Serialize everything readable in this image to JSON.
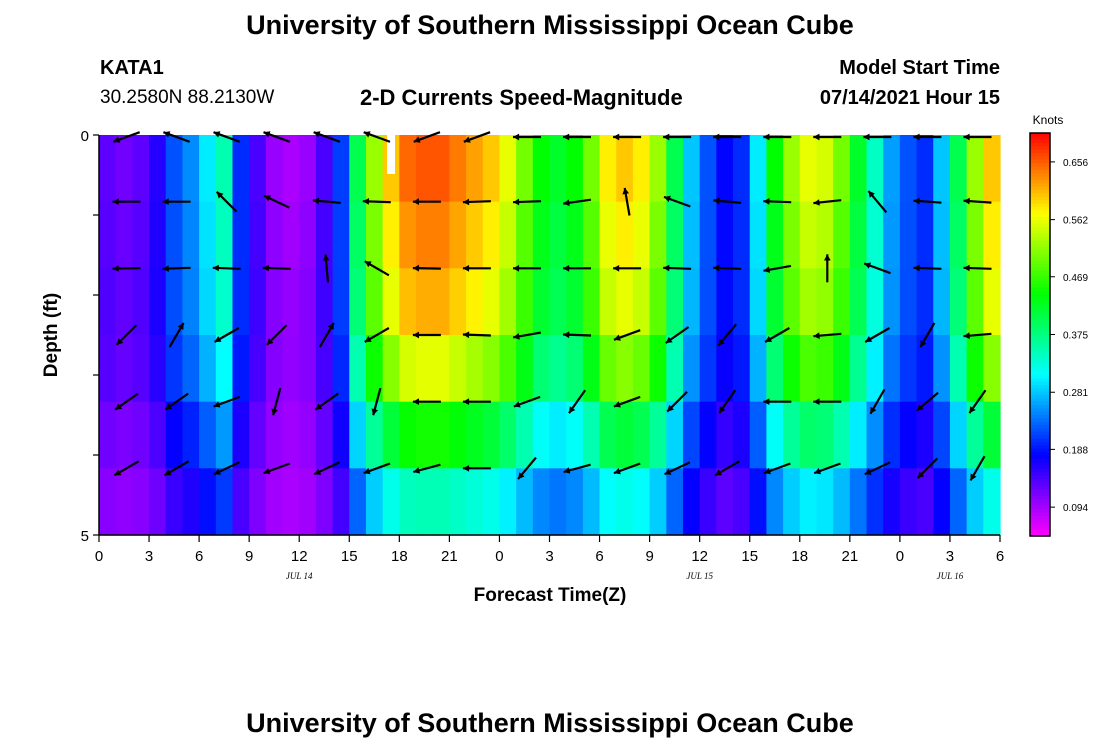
{
  "header": {
    "title_top": "University of Southern Mississippi Ocean Cube",
    "title_bottom": "University of Southern Mississippi Ocean Cube",
    "station": "KATA1",
    "coords": "30.2580N  88.2130W",
    "plot_title": "2-D Currents Speed-Magnitude",
    "model_start_label": "Model Start Time",
    "model_start_value": "07/14/2021 Hour 15"
  },
  "chart_data": {
    "type": "heatmap",
    "xlabel": "Forecast Time(Z)",
    "ylabel": "Depth (ft)",
    "x_ticks": [
      "0",
      "3",
      "6",
      "9",
      "12",
      "15",
      "18",
      "21",
      "0",
      "3",
      "6",
      "9",
      "12",
      "15",
      "18",
      "21",
      "0",
      "3",
      "6"
    ],
    "date_labels": [
      {
        "text": "JUL 14",
        "at_tick": 4
      },
      {
        "text": "JUL 15",
        "at_tick": 12
      },
      {
        "text": "JUL 16",
        "at_tick": 17
      }
    ],
    "y_ticks": [
      "0",
      "",
      "",
      "",
      "",
      "5"
    ],
    "ylim": [
      0,
      5
    ],
    "hours": 54,
    "colorbar": {
      "label": "Knots",
      "ticks": [
        "0.656",
        "0.562",
        "0.469",
        "0.375",
        "0.281",
        "0.188",
        "0.094"
      ],
      "range": [
        0.047,
        0.703
      ]
    },
    "speed_profile_knots": [
      0.13,
      0.12,
      0.13,
      0.16,
      0.22,
      0.25,
      0.3,
      0.35,
      0.2,
      0.14,
      0.1,
      0.09,
      0.1,
      0.14,
      0.21,
      0.4,
      0.52,
      0.6,
      0.65,
      0.66,
      0.66,
      0.64,
      0.62,
      0.6,
      0.56,
      0.5,
      0.44,
      0.42,
      0.44,
      0.5,
      0.58,
      0.6,
      0.58,
      0.52,
      0.4,
      0.28,
      0.22,
      0.18,
      0.2,
      0.3,
      0.44,
      0.52,
      0.56,
      0.55,
      0.5,
      0.42,
      0.34,
      0.26,
      0.22,
      0.2,
      0.28,
      0.4,
      0.52,
      0.6
    ],
    "depth_factor": [
      1.0,
      0.95,
      0.9,
      0.8,
      0.62,
      0.45
    ],
    "arrow_dirs_deg": [
      [
        200,
        160,
        160,
        160,
        160,
        160,
        200,
        200,
        180,
        180,
        180,
        180,
        180,
        180,
        180,
        180,
        180,
        180
      ],
      [
        180,
        180,
        135,
        155,
        175,
        178,
        180,
        182,
        182,
        188,
        100,
        160,
        175,
        178,
        186,
        130,
        176,
        176
      ],
      [
        181,
        182,
        178,
        178,
        95,
        150,
        179,
        180,
        180,
        180,
        180,
        178,
        178,
        190,
        90,
        160,
        178,
        178
      ],
      [
        225,
        60,
        210,
        225,
        60,
        210,
        180,
        178,
        190,
        178,
        200,
        215,
        230,
        210,
        185,
        210,
        240,
        185
      ],
      [
        215,
        215,
        200,
        255,
        215,
        255,
        180,
        180,
        200,
        235,
        200,
        225,
        235,
        180,
        180,
        240,
        220,
        235
      ],
      [
        210,
        210,
        205,
        200,
        205,
        200,
        195,
        180,
        230,
        195,
        200,
        205,
        210,
        200,
        200,
        205,
        225,
        240
      ]
    ]
  }
}
